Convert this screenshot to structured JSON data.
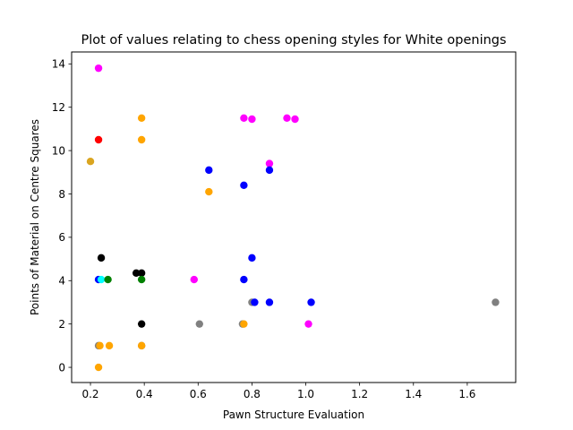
{
  "chart_data": {
    "type": "scatter",
    "title": "Plot of values relating to chess opening styles for White openings",
    "xlabel": "Pawn Structure Evaluation",
    "ylabel": "Points of Material on Centre Squares",
    "xlim": [
      0.13,
      1.78
    ],
    "ylim": [
      -0.7,
      14.55
    ],
    "xticks": [
      "0.2",
      "0.4",
      "0.6",
      "0.8",
      "1.0",
      "1.2",
      "1.4",
      "1.6"
    ],
    "xtick_values": [
      0.2,
      0.4,
      0.6,
      0.8,
      1.0,
      1.2,
      1.4,
      1.6
    ],
    "yticks": [
      "0",
      "2",
      "4",
      "6",
      "8",
      "10",
      "12",
      "14"
    ],
    "ytick_values": [
      0,
      2,
      4,
      6,
      8,
      10,
      12,
      14
    ],
    "grid": false,
    "legend": "none",
    "colors": {
      "magenta": "#ff00ff",
      "orange": "#ffa500",
      "red": "#ff0000",
      "goldenrod": "#daa520",
      "blue": "#0000ff",
      "black": "#000000",
      "green": "#008000",
      "cyan": "#00ffff",
      "gray": "#808080"
    },
    "points": [
      {
        "x": 0.23,
        "y": 13.8,
        "color": "magenta"
      },
      {
        "x": 0.39,
        "y": 11.5,
        "color": "orange"
      },
      {
        "x": 0.23,
        "y": 10.5,
        "color": "red"
      },
      {
        "x": 0.39,
        "y": 10.5,
        "color": "orange"
      },
      {
        "x": 0.2,
        "y": 9.5,
        "color": "goldenrod"
      },
      {
        "x": 0.64,
        "y": 9.1,
        "color": "blue"
      },
      {
        "x": 0.64,
        "y": 8.1,
        "color": "orange"
      },
      {
        "x": 0.77,
        "y": 11.5,
        "color": "magenta"
      },
      {
        "x": 0.8,
        "y": 11.45,
        "color": "magenta"
      },
      {
        "x": 0.93,
        "y": 11.5,
        "color": "magenta"
      },
      {
        "x": 0.96,
        "y": 11.45,
        "color": "magenta"
      },
      {
        "x": 0.865,
        "y": 9.4,
        "color": "magenta"
      },
      {
        "x": 0.865,
        "y": 9.1,
        "color": "blue"
      },
      {
        "x": 0.77,
        "y": 8.4,
        "color": "blue"
      },
      {
        "x": 0.24,
        "y": 5.05,
        "color": "black"
      },
      {
        "x": 0.37,
        "y": 4.35,
        "color": "black"
      },
      {
        "x": 0.39,
        "y": 4.35,
        "color": "black"
      },
      {
        "x": 0.23,
        "y": 4.05,
        "color": "blue"
      },
      {
        "x": 0.24,
        "y": 4.05,
        "color": "cyan"
      },
      {
        "x": 0.265,
        "y": 4.05,
        "color": "green"
      },
      {
        "x": 0.39,
        "y": 4.05,
        "color": "green"
      },
      {
        "x": 0.585,
        "y": 4.05,
        "color": "magenta"
      },
      {
        "x": 0.77,
        "y": 4.05,
        "color": "blue"
      },
      {
        "x": 0.8,
        "y": 5.05,
        "color": "blue"
      },
      {
        "x": 0.8,
        "y": 3.0,
        "color": "gray"
      },
      {
        "x": 0.81,
        "y": 3.0,
        "color": "blue"
      },
      {
        "x": 0.865,
        "y": 3.0,
        "color": "blue"
      },
      {
        "x": 1.02,
        "y": 3.0,
        "color": "blue"
      },
      {
        "x": 1.705,
        "y": 3.0,
        "color": "gray"
      },
      {
        "x": 0.39,
        "y": 2.0,
        "color": "black"
      },
      {
        "x": 0.605,
        "y": 2.0,
        "color": "gray"
      },
      {
        "x": 0.765,
        "y": 2.0,
        "color": "gray"
      },
      {
        "x": 0.77,
        "y": 2.0,
        "color": "orange"
      },
      {
        "x": 1.01,
        "y": 2.0,
        "color": "magenta"
      },
      {
        "x": 0.23,
        "y": 1.0,
        "color": "gray"
      },
      {
        "x": 0.235,
        "y": 1.0,
        "color": "orange"
      },
      {
        "x": 0.27,
        "y": 1.0,
        "color": "orange"
      },
      {
        "x": 0.39,
        "y": 1.0,
        "color": "gray"
      },
      {
        "x": 0.39,
        "y": 1.0,
        "color": "orange"
      },
      {
        "x": 0.23,
        "y": 0.0,
        "color": "orange"
      }
    ]
  }
}
